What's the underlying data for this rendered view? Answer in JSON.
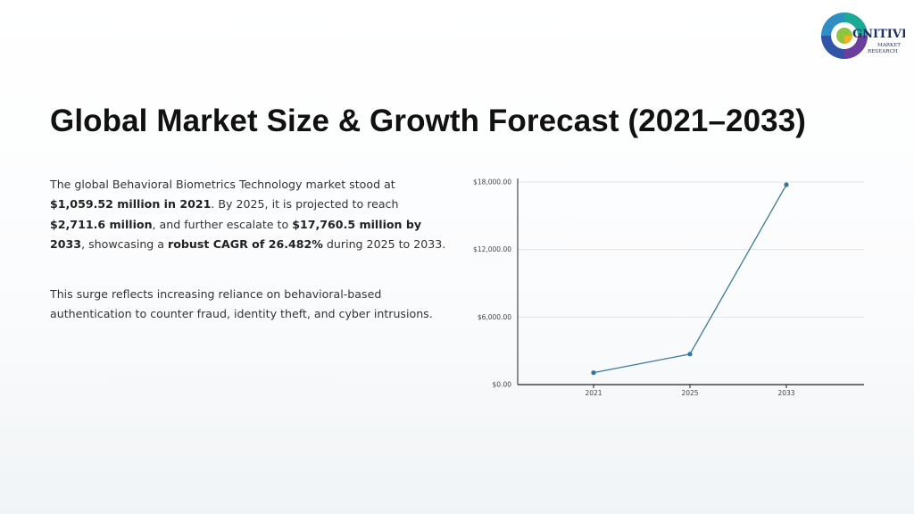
{
  "slide": {
    "title": "Global Market Size & Growth Forecast (2021–2033)",
    "paragraph1": [
      {
        "text": "The global Behavioral Biometrics Technology market stood at ",
        "bold": false
      },
      {
        "text": "$1,059.52 million in 2021",
        "bold": true
      },
      {
        "text": ". By 2025, it is projected to reach ",
        "bold": false
      },
      {
        "text": "$2,711.6 million",
        "bold": true
      },
      {
        "text": ", and further escalate to ",
        "bold": false
      },
      {
        "text": "$17,760.5 million by 2033",
        "bold": true
      },
      {
        "text": ", showcasing a ",
        "bold": false
      },
      {
        "text": "robust CAGR of 26.482%",
        "bold": true
      },
      {
        "text": " during 2025 to 2033.",
        "bold": false
      }
    ],
    "paragraph2": "This surge reflects increasing reliance on behavioral-based authentication to counter fraud, identity theft, and cyber intrusions."
  },
  "logo": {
    "line1": "GNITIVE",
    "line2": "MARKET",
    "line3": "RESEARCH",
    "icon": "cognitive-market-research-logo"
  },
  "colors": {
    "line": "#3b7a99",
    "point": "#2f79a3",
    "grid": "#e3e3e3",
    "axis": "#222222"
  },
  "chart_data": {
    "type": "line",
    "categories": [
      "2021",
      "2025",
      "2033"
    ],
    "values": [
      1059.52,
      2711.6,
      17760.5
    ],
    "yticks": [
      0,
      6000,
      12000,
      18000
    ],
    "ytick_labels": [
      "$0.00",
      "$6,000.00",
      "$12,000.00",
      "$18,000.00"
    ],
    "ylim": [
      0,
      18000
    ],
    "grid": true,
    "title": "",
    "xlabel": "",
    "ylabel": ""
  }
}
